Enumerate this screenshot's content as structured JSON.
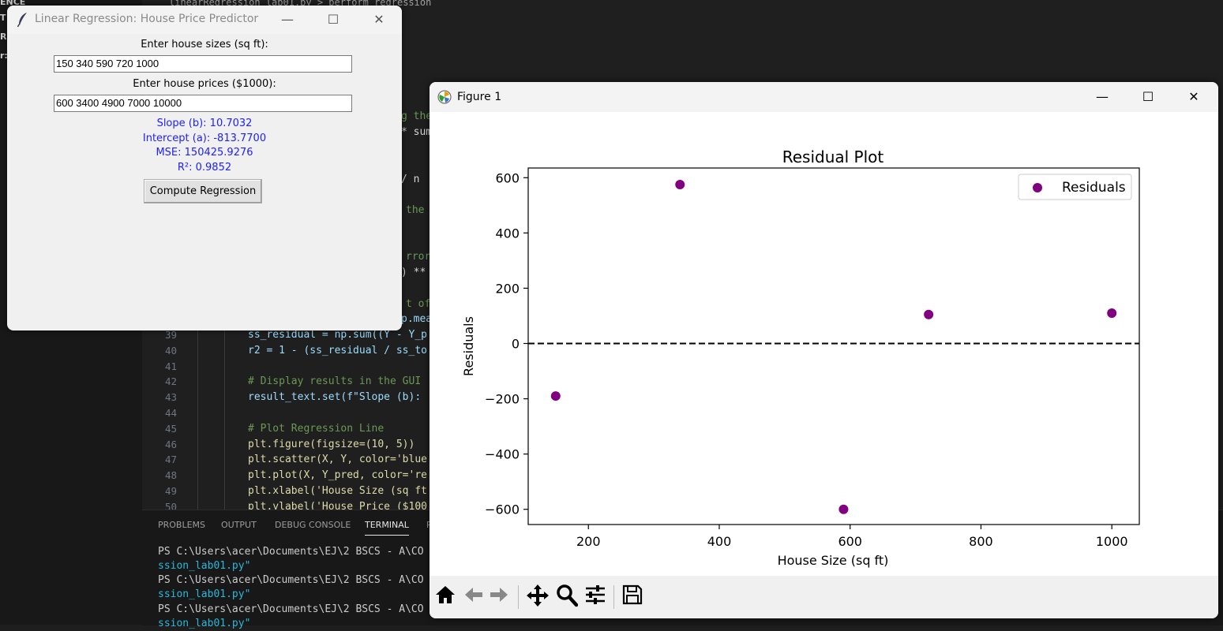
{
  "vscode": {
    "breadcrumb": "linearRegression_lab01.py > perform_regression",
    "sidebar_lines": [
      "ENCE",
      "T",
      "R",
      "r:R"
    ],
    "code_fragments": [
      {
        "text": "g the"
      },
      {
        "text": "* sum"
      },
      {
        "text": "/ n"
      },
      {
        "text": "the"
      },
      {
        "text": "rror"
      },
      {
        "text": ") **"
      },
      {
        "text": "t of"
      },
      {
        "text": "p.mea"
      }
    ],
    "code_lines": [
      {
        "num": "39",
        "text": "ss_residual = np.sum((Y - Y_p"
      },
      {
        "num": "40",
        "text": "r2 = 1 - (ss_residual / ss_to"
      },
      {
        "num": "41",
        "text": ""
      },
      {
        "num": "42",
        "text": "# Display results in the GUI"
      },
      {
        "num": "43",
        "text": "result_text.set(f\"Slope (b):"
      },
      {
        "num": "44",
        "text": ""
      },
      {
        "num": "45",
        "text": "# Plot Regression Line"
      },
      {
        "num": "46",
        "text": "plt.figure(figsize=(10, 5))"
      },
      {
        "num": "47",
        "text": "plt.scatter(X, Y, color='blue"
      },
      {
        "num": "48",
        "text": "plt.plot(X, Y_pred, color='re"
      },
      {
        "num": "49",
        "text": "plt.xlabel('House Size (sq ft"
      },
      {
        "num": "50",
        "text": "plt.ylabel('House Price ($100"
      }
    ],
    "panel_tabs": [
      "PROBLEMS",
      "OUTPUT",
      "DEBUG CONSOLE",
      "TERMINAL",
      "P"
    ],
    "terminal_lines": [
      {
        "text": "PS C:\\Users\\acer\\Documents\\EJ\\2 BSCS - A\\CO",
        "style": "plain"
      },
      {
        "text": "ssion_lab01.py\"",
        "style": "cyan"
      },
      {
        "text": "PS C:\\Users\\acer\\Documents\\EJ\\2 BSCS - A\\CO",
        "style": "plain"
      },
      {
        "text": "ssion_lab01.py\"",
        "style": "cyan"
      },
      {
        "text": "PS C:\\Users\\acer\\Documents\\EJ\\2 BSCS - A\\CO",
        "style": "plain"
      },
      {
        "text": "ssion_lab01.py\"",
        "style": "cyan"
      }
    ]
  },
  "tk_window": {
    "title": "Linear Regression: House Price Predictor",
    "sizes_label": "Enter house sizes (sq ft):",
    "sizes_value": "150 340 590 720 1000",
    "prices_label": "Enter house prices ($1000):",
    "prices_value": "600 3400 4900 7000 10000",
    "results": {
      "slope": "Slope (b): 10.7032",
      "intercept": "Intercept (a): -813.7700",
      "mse": "MSE: 150425.9276",
      "r2": "R²: 0.9852"
    },
    "compute_button": "Compute Regression",
    "controls": {
      "minimize": "—",
      "maximize": "☐",
      "close": "✕"
    }
  },
  "figure_window": {
    "title": "Figure 1",
    "controls": {
      "minimize": "—",
      "maximize": "☐",
      "close": "✕"
    },
    "toolbar_icons": [
      "home-icon",
      "back-arrow-icon",
      "forward-arrow-icon",
      "pan-icon",
      "zoom-icon",
      "configure-subplots-icon",
      "save-icon"
    ]
  },
  "chart_data": {
    "type": "scatter",
    "title": "Residual Plot",
    "xlabel": "House Size (sq ft)",
    "ylabel": "Residuals",
    "x": [
      150,
      340,
      590,
      720,
      1000
    ],
    "y": [
      -190,
      575,
      -600,
      105,
      110
    ],
    "series": [
      {
        "name": "Residuals",
        "color": "#800080"
      }
    ],
    "xlim": [
      108,
      1042
    ],
    "ylim": [
      -655,
      635
    ],
    "xticks": [
      200,
      400,
      600,
      800,
      1000
    ],
    "yticks": [
      600,
      400,
      200,
      0,
      -200,
      -400,
      -600
    ],
    "xtick_labels": [
      "200",
      "400",
      "600",
      "800",
      "1000"
    ],
    "ytick_labels": [
      "600",
      "400",
      "200",
      "0",
      "−200",
      "−400",
      "−600"
    ],
    "reference_line": {
      "y": 0,
      "style": "dashed",
      "color": "#000000"
    },
    "legend": "top-right",
    "grid": false
  }
}
